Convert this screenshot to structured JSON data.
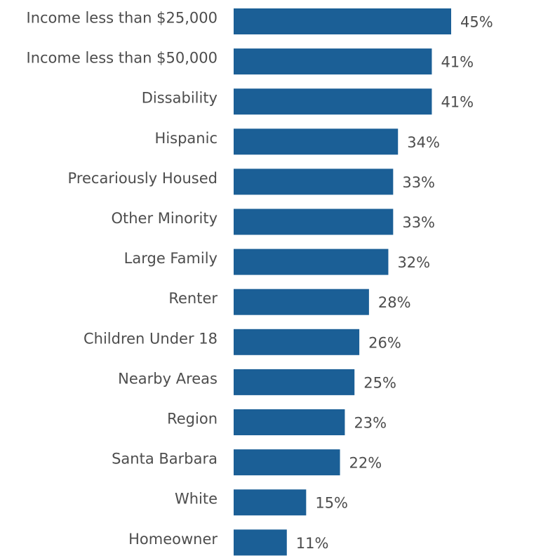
{
  "chart_data": {
    "type": "bar",
    "orientation": "horizontal",
    "categories": [
      "Income less than $25,000",
      "Income less than $50,000",
      "Dissability",
      "Hispanic",
      "Precariously Housed",
      "Other Minority",
      "Large Family",
      "Renter",
      "Children Under 18",
      "Nearby Areas",
      "Region",
      "Santa Barbara",
      "White",
      "Homeowner"
    ],
    "values": [
      45,
      41,
      41,
      34,
      33,
      33,
      32,
      28,
      26,
      25,
      23,
      22,
      15,
      11
    ],
    "value_labels": [
      "45%",
      "41%",
      "41%",
      "34%",
      "33%",
      "33%",
      "32%",
      "28%",
      "26%",
      "25%",
      "23%",
      "22%",
      "15%",
      "11%"
    ],
    "xlim": [
      0,
      45
    ],
    "grid": false,
    "bar_color": "#1b5f96",
    "label_color": "#4d4d4d"
  }
}
